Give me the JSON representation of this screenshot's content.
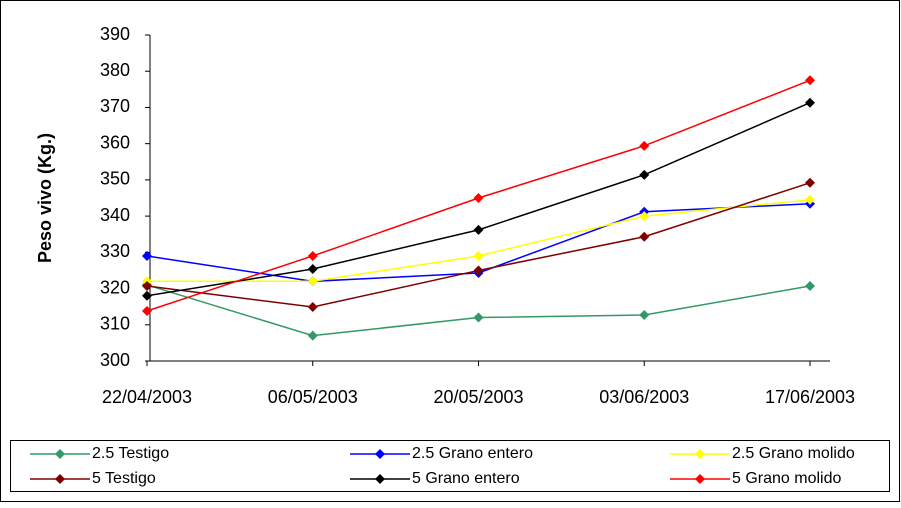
{
  "chart_data": {
    "type": "line",
    "y_label": "Peso vivo (Kg.)",
    "categories": [
      "22/04/2003",
      "06/05/2003",
      "20/05/2003",
      "03/06/2003",
      "17/06/2003"
    ],
    "series": [
      {
        "name": "2.5 Testigo",
        "color": "#339966",
        "values": [
          321,
          307,
          312,
          312.7,
          320.7
        ]
      },
      {
        "name": "2.5 Grano entero",
        "color": "#0000ff",
        "values": [
          329,
          322,
          324.3,
          341.2,
          343.4
        ]
      },
      {
        "name": "2.5 Grano molido",
        "color": "#ffff00",
        "values": [
          322,
          322,
          329,
          340,
          344.5
        ]
      },
      {
        "name": "5 Testigo",
        "color": "#800000",
        "values": [
          320.7,
          314.9,
          325,
          334.3,
          349.2
        ]
      },
      {
        "name": "5 Grano entero",
        "color": "#000000",
        "values": [
          318,
          325.4,
          336.2,
          351.4,
          371.3
        ]
      },
      {
        "name": "5 Grano molido",
        "color": "#ff0000",
        "values": [
          313.8,
          329,
          345,
          359.4,
          377.5
        ]
      }
    ],
    "ylim": [
      300,
      390
    ],
    "yticks": [
      300,
      310,
      320,
      330,
      340,
      350,
      360,
      370,
      380,
      390
    ],
    "legend": "bottom",
    "marker": "diamond"
  }
}
